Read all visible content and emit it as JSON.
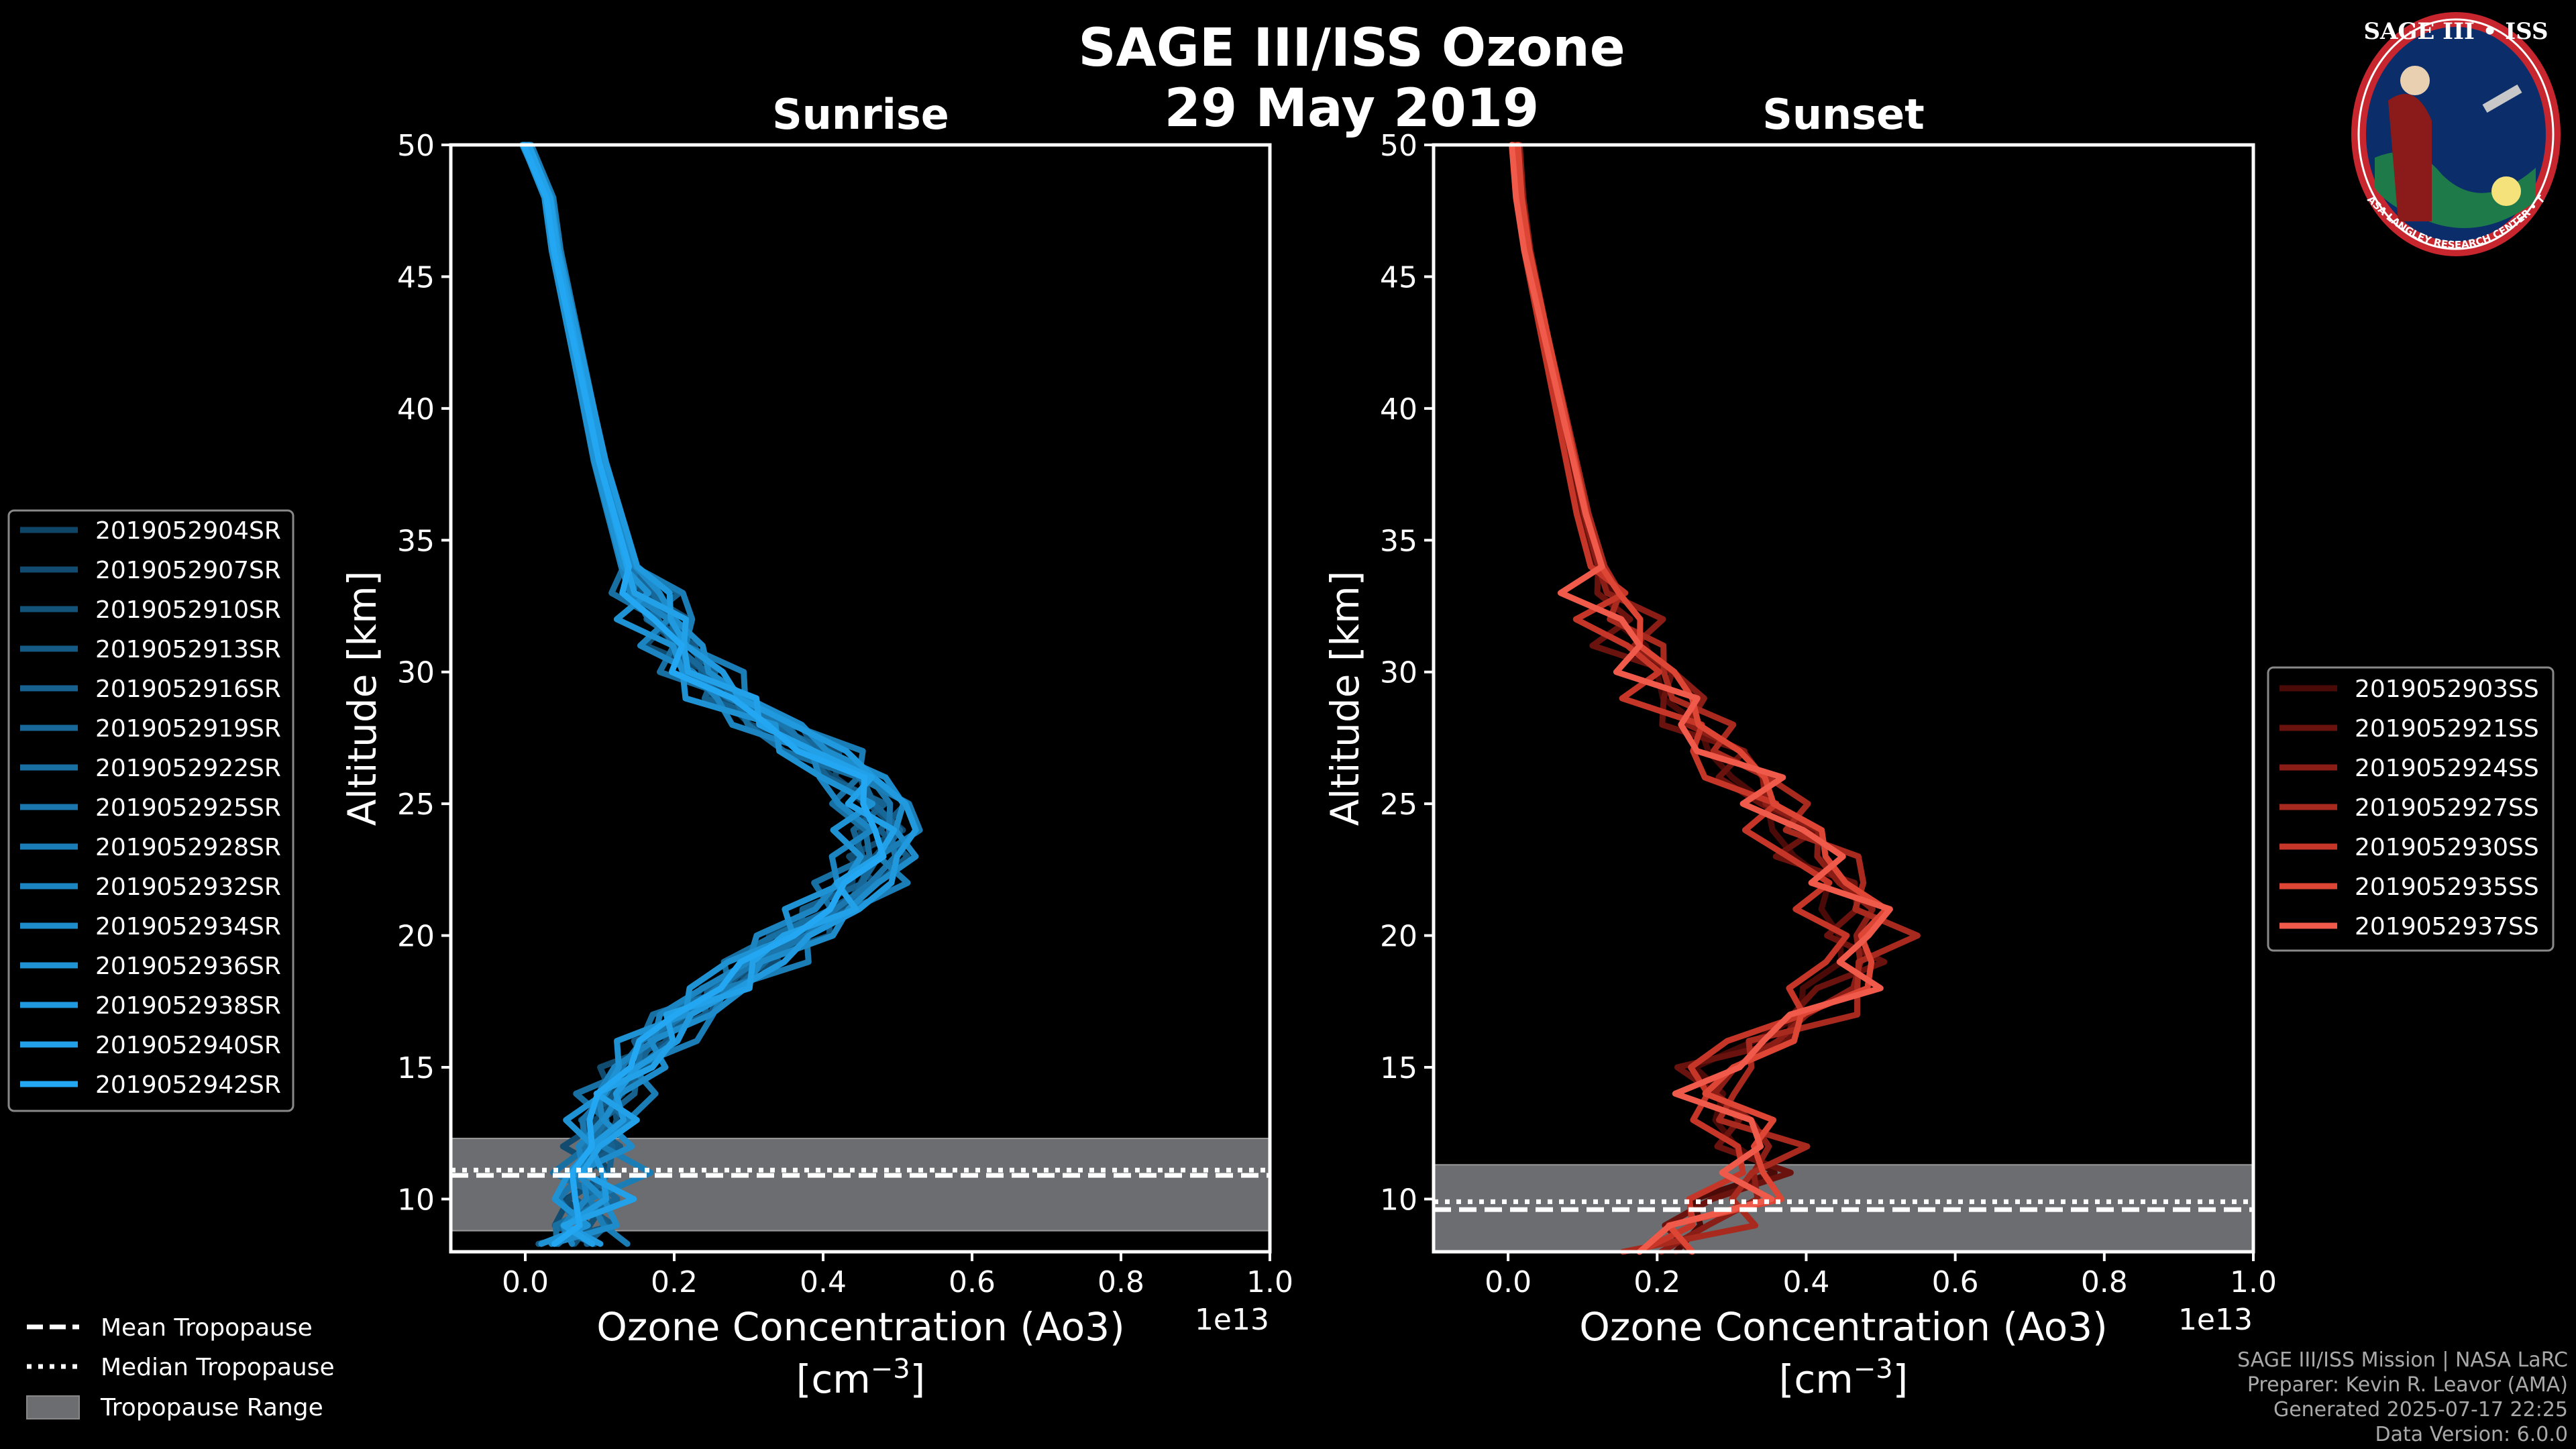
{
  "title": {
    "line1": "SAGE III/ISS Ozone",
    "line2": "29 May 2019"
  },
  "logo": {
    "text": "SAGE III • ISS",
    "ring_text": "BALL • NASA LANGLEY RESEARCH CENTER • TAS • ESA",
    "icon": "mission-patch-icon"
  },
  "colors": {
    "sunrise": "#1f9ede",
    "sunset": "#f05a4a",
    "tropopause_band": "#6b6d70",
    "background": "#000000"
  },
  "chart_data": [
    {
      "type": "line",
      "title": "Sunrise",
      "xlabel": "Ozone Concentration (Ao3)",
      "xunit_base": "[cm",
      "xunit_sup": "−3",
      "xunit_close": "]",
      "x_offset_label": "1e13",
      "ylabel": "Altitude [km]",
      "xlim": [
        -0.1,
        1.0
      ],
      "ylim": [
        8,
        50
      ],
      "xticks": [
        0.0,
        0.2,
        0.4,
        0.6,
        0.8,
        1.0
      ],
      "xtick_labels": [
        "0.0",
        "0.2",
        "0.4",
        "0.6",
        "0.8",
        "1.0"
      ],
      "yticks": [
        10,
        15,
        20,
        25,
        30,
        35,
        40,
        45,
        50
      ],
      "ytick_labels": [
        "10",
        "15",
        "20",
        "25",
        "30",
        "35",
        "40",
        "45",
        "50"
      ],
      "tropopause": {
        "range": [
          8.8,
          12.3
        ],
        "mean": 10.9,
        "median": 11.1
      },
      "base_profile": {
        "alt": [
          8.3,
          9,
          10,
          11,
          12,
          13,
          14,
          15,
          16,
          17,
          18,
          19,
          20,
          21,
          22,
          23,
          24,
          25,
          26,
          27,
          28,
          29,
          30,
          31,
          32,
          33,
          34,
          35,
          36,
          38,
          40,
          42,
          44,
          46,
          48,
          50
        ],
        "val": [
          0.06,
          0.07,
          0.08,
          0.08,
          0.09,
          0.1,
          0.11,
          0.14,
          0.17,
          0.21,
          0.26,
          0.31,
          0.36,
          0.41,
          0.45,
          0.47,
          0.48,
          0.47,
          0.44,
          0.39,
          0.33,
          0.27,
          0.23,
          0.2,
          0.18,
          0.16,
          0.14,
          0.13,
          0.12,
          0.1,
          0.085,
          0.07,
          0.055,
          0.04,
          0.03,
          0.0
        ]
      },
      "series": [
        {
          "name": "2019052904SR",
          "color": "#0f4566",
          "scale": 0.93,
          "shift": 0.01
        },
        {
          "name": "2019052907SR",
          "color": "#114c70",
          "scale": 1.02,
          "shift": -0.01
        },
        {
          "name": "2019052910SR",
          "color": "#13537a",
          "scale": 0.97,
          "shift": 0.02
        },
        {
          "name": "2019052913SR",
          "color": "#145a84",
          "scale": 1.05,
          "shift": 0.0
        },
        {
          "name": "2019052916SR",
          "color": "#16618e",
          "scale": 0.9,
          "shift": 0.03
        },
        {
          "name": "2019052919SR",
          "color": "#176898",
          "scale": 1.0,
          "shift": 0.01
        },
        {
          "name": "2019052922SR",
          "color": "#186fa2",
          "scale": 0.95,
          "shift": -0.005
        },
        {
          "name": "2019052925SR",
          "color": "#1a76ac",
          "scale": 1.08,
          "shift": -0.02
        },
        {
          "name": "2019052928SR",
          "color": "#1b7db6",
          "scale": 0.99,
          "shift": 0.04
        },
        {
          "name": "2019052932SR",
          "color": "#1c84c0",
          "scale": 0.92,
          "shift": 0.0
        },
        {
          "name": "2019052934SR",
          "color": "#1e8bca",
          "scale": 1.03,
          "shift": 0.02
        },
        {
          "name": "2019052936SR",
          "color": "#1f92d4",
          "scale": 0.96,
          "shift": -0.015
        },
        {
          "name": "2019052938SR",
          "color": "#2099de",
          "scale": 1.06,
          "shift": 0.01
        },
        {
          "name": "2019052940SR",
          "color": "#22a0e8",
          "scale": 0.94,
          "shift": 0.025
        },
        {
          "name": "2019052942SR",
          "color": "#23a7f2",
          "scale": 1.01,
          "shift": -0.01
        }
      ]
    },
    {
      "type": "line",
      "title": "Sunset",
      "xlabel": "Ozone Concentration (Ao3)",
      "xunit_base": "[cm",
      "xunit_sup": "−3",
      "xunit_close": "]",
      "x_offset_label": "1e13",
      "ylabel": "Altitude [km]",
      "xlim": [
        -0.1,
        1.0
      ],
      "ylim": [
        8,
        50
      ],
      "xticks": [
        0.0,
        0.2,
        0.4,
        0.6,
        0.8,
        1.0
      ],
      "xtick_labels": [
        "0.0",
        "0.2",
        "0.4",
        "0.6",
        "0.8",
        "1.0"
      ],
      "yticks": [
        10,
        15,
        20,
        25,
        30,
        35,
        40,
        45,
        50
      ],
      "ytick_labels": [
        "10",
        "15",
        "20",
        "25",
        "30",
        "35",
        "40",
        "45",
        "50"
      ],
      "tropopause": {
        "range": [
          8.0,
          11.3
        ],
        "mean": 9.6,
        "median": 9.9
      },
      "base_profile": {
        "alt": [
          8.0,
          9,
          10,
          11,
          12,
          13,
          14,
          15,
          16,
          17,
          18,
          19,
          20,
          21,
          22,
          23,
          24,
          25,
          26,
          27,
          28,
          29,
          30,
          31,
          32,
          33,
          34,
          35,
          36,
          38,
          40,
          42,
          44,
          46,
          48,
          50
        ],
        "val": [
          0.2,
          0.25,
          0.3,
          0.33,
          0.33,
          0.3,
          0.27,
          0.28,
          0.34,
          0.4,
          0.44,
          0.46,
          0.47,
          0.46,
          0.44,
          0.41,
          0.38,
          0.35,
          0.32,
          0.28,
          0.25,
          0.22,
          0.2,
          0.17,
          0.15,
          0.13,
          0.12,
          0.11,
          0.1,
          0.085,
          0.07,
          0.055,
          0.04,
          0.025,
          0.015,
          0.01
        ]
      },
      "series": [
        {
          "name": "2019052903SS",
          "color": "#4a0b08",
          "scale": 0.9,
          "shift": 0.02
        },
        {
          "name": "2019052921SS",
          "color": "#6a130e",
          "scale": 1.04,
          "shift": -0.02
        },
        {
          "name": "2019052924SS",
          "color": "#8a1d15",
          "scale": 0.96,
          "shift": 0.03
        },
        {
          "name": "2019052927SS",
          "color": "#a8291e",
          "scale": 1.08,
          "shift": 0.0
        },
        {
          "name": "2019052930SS",
          "color": "#c53628",
          "scale": 0.94,
          "shift": -0.01
        },
        {
          "name": "2019052935SS",
          "color": "#dd4535",
          "scale": 1.02,
          "shift": 0.015
        },
        {
          "name": "2019052937SS",
          "color": "#f05a4a",
          "scale": 1.1,
          "shift": -0.03
        }
      ]
    }
  ],
  "legend_bottom": [
    {
      "label": "Mean Tropopause",
      "style": "dashed"
    },
    {
      "label": "Median Tropopause",
      "style": "dotted"
    },
    {
      "label": "Tropopause Range",
      "style": "patch"
    }
  ],
  "credits": {
    "line1": "SAGE III/ISS Mission | NASA LaRC",
    "line2": "Preparer: Kevin R. Leavor (AMA)",
    "line3": "Generated 2025-07-17 22:25",
    "line4": "Data Version: 6.0.0"
  }
}
